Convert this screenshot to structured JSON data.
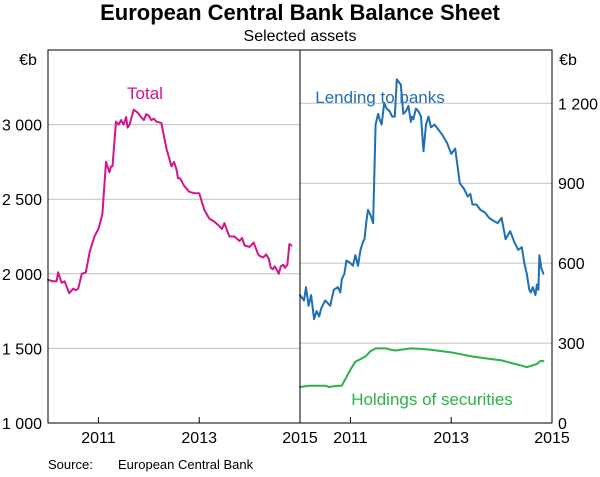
{
  "title": "European Central Bank Balance Sheet",
  "subtitle": "Selected assets",
  "source": {
    "label": "Source:",
    "text": "European Central Bank"
  },
  "colors": {
    "total": "#d4148c",
    "lending": "#1f6fb5",
    "securities": "#2db14a",
    "grid": "#c0c0c0",
    "axis": "#000000"
  },
  "chart_data": [
    {
      "type": "line",
      "panel": "left",
      "unit_label": "€b",
      "ylim": [
        1000,
        3500
      ],
      "yticks": [
        1000,
        1500,
        2000,
        2500,
        3000
      ],
      "ytick_labels": [
        "1 000",
        "1 500",
        "2 000",
        "2 500",
        "3 000"
      ],
      "xlim": [
        2010.0,
        2015.0
      ],
      "xticks": [
        2011,
        2013,
        2015
      ],
      "xtick_labels": [
        "2011",
        "2013",
        "2015"
      ],
      "grid": true,
      "series": [
        {
          "name": "Total",
          "color": "#d4148c",
          "x": [
            2010.0,
            2010.1,
            2010.17,
            2010.2,
            2010.27,
            2010.33,
            2010.42,
            2010.5,
            2010.55,
            2010.6,
            2010.67,
            2010.75,
            2010.83,
            2010.92,
            2011.0,
            2011.08,
            2011.15,
            2011.22,
            2011.25,
            2011.28,
            2011.35,
            2011.4,
            2011.45,
            2011.5,
            2011.55,
            2011.58,
            2011.62,
            2011.7,
            2011.78,
            2011.85,
            2011.9,
            2011.95,
            2012.0,
            2012.05,
            2012.1,
            2012.15,
            2012.25,
            2012.35,
            2012.45,
            2012.5,
            2012.55,
            2012.58,
            2012.62,
            2012.7,
            2012.8,
            2012.9,
            2013.0,
            2013.1,
            2013.2,
            2013.3,
            2013.4,
            2013.45,
            2013.5,
            2013.6,
            2013.7,
            2013.8,
            2013.85,
            2013.9,
            2014.0,
            2014.08,
            2014.17,
            2014.2,
            2014.27,
            2014.33,
            2014.38,
            2014.42,
            2014.46,
            2014.5,
            2014.55,
            2014.58,
            2014.62,
            2014.67,
            2014.7,
            2014.75,
            2014.79,
            2014.83
          ],
          "values": [
            1960,
            1950,
            1950,
            2010,
            1940,
            1950,
            1870,
            1900,
            1890,
            1900,
            2000,
            2010,
            2150,
            2250,
            2300,
            2400,
            2750,
            2680,
            2720,
            2720,
            3020,
            3000,
            3030,
            3000,
            3050,
            2980,
            3000,
            3100,
            3080,
            3050,
            3030,
            3070,
            3060,
            3030,
            3040,
            3020,
            3010,
            2840,
            2720,
            2750,
            2700,
            2640,
            2640,
            2590,
            2550,
            2540,
            2540,
            2430,
            2370,
            2350,
            2320,
            2300,
            2340,
            2250,
            2250,
            2220,
            2240,
            2190,
            2180,
            2210,
            2130,
            2120,
            2110,
            2130,
            2100,
            2040,
            2030,
            2050,
            2020,
            2000,
            2050,
            2060,
            2040,
            2060,
            2200,
            2190
          ]
        }
      ]
    },
    {
      "type": "line",
      "panel": "right",
      "unit_label": "€b",
      "ylim": [
        0,
        1400
      ],
      "yticks": [
        0,
        300,
        600,
        900,
        1200
      ],
      "ytick_labels": [
        "0",
        "300",
        "600",
        "900",
        "1 200"
      ],
      "xlim": [
        2010.0,
        2015.0
      ],
      "xticks": [
        2011,
        2013,
        2015
      ],
      "xtick_labels": [
        "2011",
        "2013",
        "2015"
      ],
      "grid": true,
      "series": [
        {
          "name": "Lending to banks",
          "color": "#1f6fb5",
          "x": [
            2010.0,
            2010.08,
            2010.12,
            2010.17,
            2010.22,
            2010.28,
            2010.33,
            2010.38,
            2010.42,
            2010.5,
            2010.55,
            2010.6,
            2010.67,
            2010.75,
            2010.8,
            2010.83,
            2010.88,
            2010.92,
            2011.0,
            2011.05,
            2011.1,
            2011.15,
            2011.2,
            2011.25,
            2011.28,
            2011.32,
            2011.35,
            2011.4,
            2011.45,
            2011.5,
            2011.55,
            2011.58,
            2011.62,
            2011.67,
            2011.72,
            2011.78,
            2011.83,
            2011.88,
            2011.92,
            2012.0,
            2012.05,
            2012.1,
            2012.15,
            2012.2,
            2012.22,
            2012.25,
            2012.3,
            2012.35,
            2012.4,
            2012.45,
            2012.5,
            2012.55,
            2012.6,
            2012.67,
            2012.75,
            2012.83,
            2012.92,
            2013.0,
            2013.08,
            2013.17,
            2013.25,
            2013.33,
            2013.38,
            2013.42,
            2013.5,
            2013.58,
            2013.67,
            2013.75,
            2013.83,
            2013.92,
            2014.0,
            2014.08,
            2014.17,
            2014.25,
            2014.33,
            2014.4,
            2014.45,
            2014.5,
            2014.55,
            2014.58,
            2014.62,
            2014.67,
            2014.7,
            2014.73,
            2014.75,
            2014.79,
            2014.83
          ],
          "values": [
            480,
            460,
            510,
            440,
            480,
            390,
            420,
            400,
            430,
            460,
            450,
            440,
            500,
            510,
            490,
            540,
            560,
            610,
            600,
            590,
            630,
            590,
            650,
            680,
            690,
            760,
            800,
            780,
            750,
            1120,
            1160,
            1140,
            1120,
            1200,
            1180,
            1170,
            1150,
            1150,
            1290,
            1270,
            1160,
            1170,
            1190,
            1130,
            1150,
            1140,
            1180,
            1170,
            1150,
            1020,
            1120,
            1150,
            1110,
            1120,
            1100,
            1080,
            1050,
            1010,
            1030,
            900,
            880,
            850,
            860,
            820,
            820,
            800,
            790,
            770,
            760,
            750,
            770,
            690,
            720,
            680,
            650,
            660,
            600,
            560,
            500,
            490,
            510,
            480,
            520,
            500,
            630,
            580,
            560
          ]
        },
        {
          "name": "Holdings of securities",
          "color": "#2db14a",
          "x": [
            2010.0,
            2010.17,
            2010.33,
            2010.5,
            2010.58,
            2010.67,
            2010.75,
            2010.83,
            2011.0,
            2011.1,
            2011.2,
            2011.3,
            2011.4,
            2011.5,
            2011.6,
            2011.7,
            2011.8,
            2011.9,
            2012.0,
            2012.2,
            2012.4,
            2012.6,
            2012.8,
            2013.0,
            2013.2,
            2013.4,
            2013.6,
            2013.8,
            2014.0,
            2014.2,
            2014.4,
            2014.5,
            2014.6,
            2014.7,
            2014.75,
            2014.79,
            2014.83
          ],
          "values": [
            135,
            140,
            140,
            140,
            135,
            138,
            140,
            140,
            200,
            230,
            240,
            250,
            270,
            280,
            280,
            280,
            275,
            272,
            275,
            280,
            278,
            275,
            270,
            265,
            258,
            250,
            245,
            240,
            235,
            225,
            215,
            210,
            215,
            222,
            230,
            234,
            232
          ]
        }
      ]
    }
  ]
}
